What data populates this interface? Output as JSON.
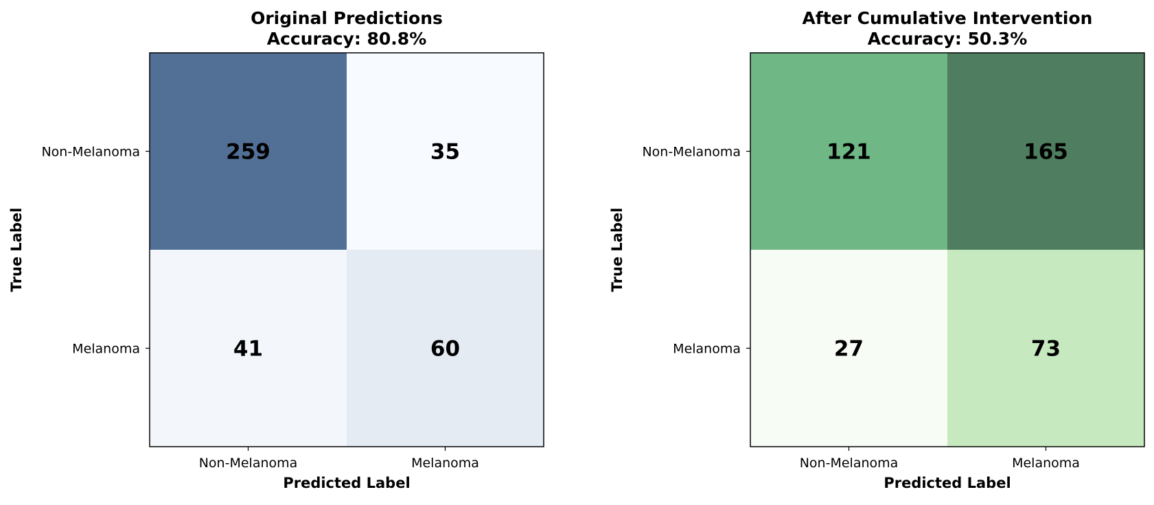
{
  "chart_data": [
    {
      "type": "heatmap",
      "title": "Original Predictions",
      "subtitle": "Accuracy: 80.8%",
      "xlabel": "Predicted Label",
      "ylabel": "True Label",
      "x_categories": [
        "Non-Melanoma",
        "Melanoma"
      ],
      "y_categories": [
        "Non-Melanoma",
        "Melanoma"
      ],
      "values": [
        [
          259,
          35
        ],
        [
          41,
          60
        ]
      ],
      "colormap": "blues",
      "colors": {
        "low": "#f7fbff",
        "high": "#527096"
      },
      "grid": false
    },
    {
      "type": "heatmap",
      "title": "After Cumulative Intervention",
      "subtitle": "Accuracy: 50.3%",
      "xlabel": "Predicted Label",
      "ylabel": "True Label",
      "x_categories": [
        "Non-Melanoma",
        "Melanoma"
      ],
      "y_categories": [
        "Non-Melanoma",
        "Melanoma"
      ],
      "values": [
        [
          121,
          165
        ],
        [
          27,
          73
        ]
      ],
      "colormap": "greens",
      "colors": {
        "low": "#f7fcf5",
        "mid": "#c7e9c0",
        "midhigh": "#71ba86",
        "high": "#4e7d5f"
      },
      "grid": false
    }
  ]
}
